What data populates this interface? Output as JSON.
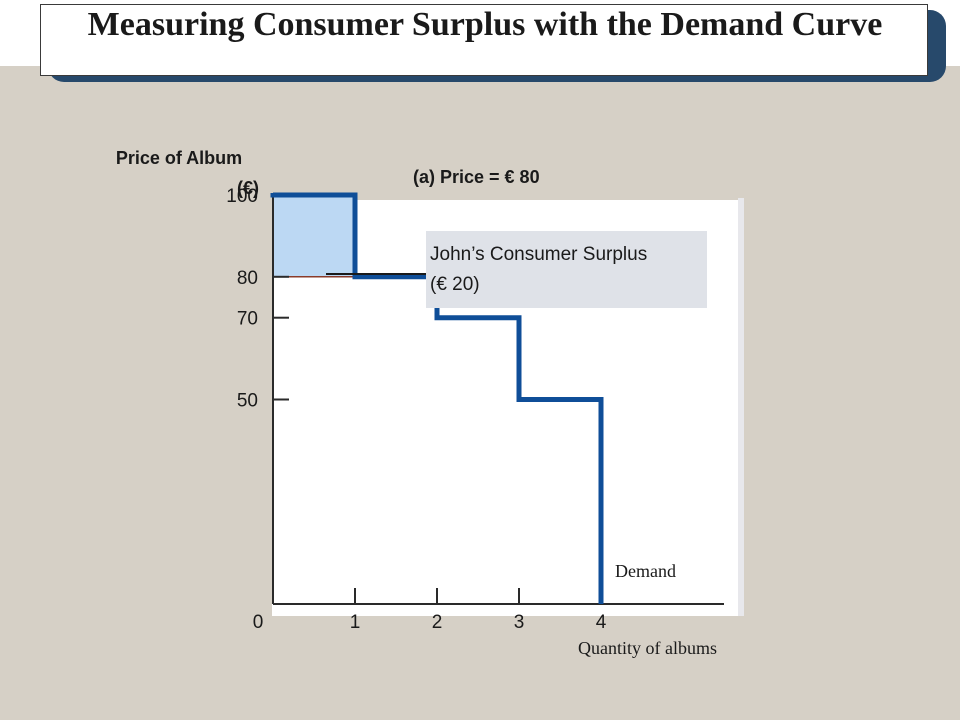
{
  "slide": {
    "title": "Measuring Consumer Surplus with the Demand Curve"
  },
  "chart_data": {
    "type": "line",
    "title": "(a) Price = € 80",
    "ylabel_line1": "Price of Album",
    "ylabel_line2": "(€)",
    "xlabel": "Quantity of albums",
    "origin_label": "0",
    "x_ticks": [
      "1",
      "2",
      "3",
      "4"
    ],
    "y_ticks": [
      "100",
      "80",
      "70",
      "50"
    ],
    "xlim": [
      0,
      5.5
    ],
    "ylim": [
      0,
      125
    ],
    "series": [
      {
        "name": "Demand",
        "steps": [
          {
            "q_from": 0,
            "q_to": 1,
            "price": 100
          },
          {
            "q_from": 1,
            "q_to": 2,
            "price": 80
          },
          {
            "q_from": 2,
            "q_to": 3,
            "price": 70
          },
          {
            "q_from": 3,
            "q_to": 4,
            "price": 50
          }
        ]
      }
    ],
    "market_price": 80,
    "surplus_annotation": {
      "line1": "John’s Consumer Surplus",
      "line2": "(€ 20)",
      "value": 20
    },
    "colors": {
      "demand": "#0f4e98",
      "surplus_fill": "#bcd8f3",
      "plot_bg": "#ffffff",
      "annotation_bg": "#dfe2e8"
    }
  }
}
